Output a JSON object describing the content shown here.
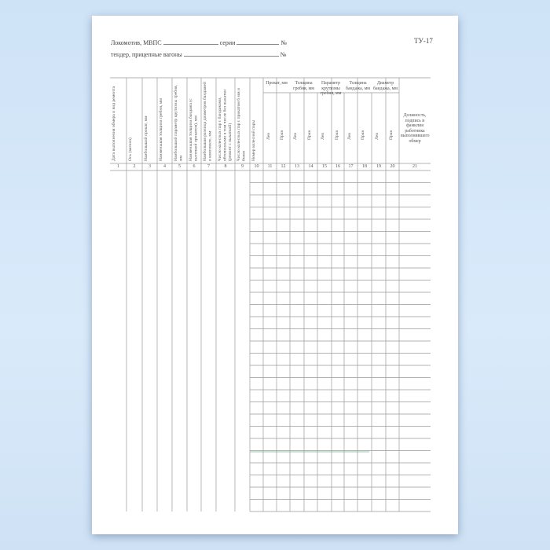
{
  "form": {
    "code": "ТУ-17",
    "line1": {
      "label": "Локомотив, МВПС",
      "series_label": "серии",
      "number_label": "№"
    },
    "line2": {
      "label": "тендер, прицепные вагоны",
      "number_label": "№"
    }
  },
  "table": {
    "single_columns": [
      "Дата выполнения обмера и вид ремонта",
      "Ось (вагона)",
      "Наибольший прокат, мм",
      "Наименьшая толщина гребня, мм",
      "Наибольший параметр крутизны гребня, мм",
      "Наименьшая толщина бандажа (с выточкой прокатом), мм",
      "Наибольшая разница диаметров бандажей в комплекте, мм",
      "Число колесных пар с бандажами, обточенными в том числе без выкатки (ремонт с выкаткой)",
      "Число колесных пар с прокатом 6 мм и более",
      "Номер колесной пары"
    ],
    "groups": [
      "Прокат, мм",
      "Толщина гребня, мм",
      "Параметр крутизны гребня, мм",
      "Толщина бандажа, мм",
      "Диаметр бандажа, мм"
    ],
    "sub_left": "Лев",
    "sub_right": "Прав",
    "last_column": "Должность, подпись и фамилия работника выполнившего обмер",
    "column_numbers": [
      "1",
      "2",
      "3",
      "4",
      "5",
      "6",
      "7",
      "8",
      "9",
      "10",
      "11",
      "12",
      "13",
      "14",
      "15",
      "16",
      "17",
      "18",
      "19",
      "20",
      "21"
    ]
  }
}
